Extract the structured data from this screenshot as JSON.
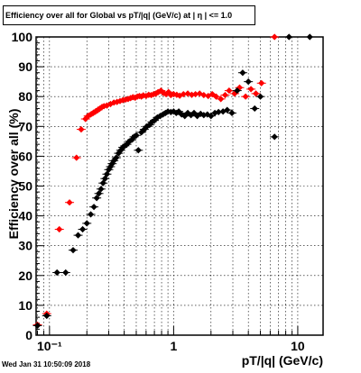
{
  "chart_data": {
    "type": "scatter",
    "title": "Efficiency over all for Global vs pT/|q| (GeV/c) at |  η | <= 1.0",
    "xlabel": "pT/|q| (GeV/c)",
    "ylabel": "Efficiency over all (%)",
    "x_scale": "log",
    "xlim": [
      0.078,
      16
    ],
    "ylim": [
      0,
      100
    ],
    "grid": true,
    "x_tick_labels": [
      {
        "value": 0.1,
        "label": "10⁻¹"
      },
      {
        "value": 1,
        "label": "1"
      },
      {
        "value": 10,
        "label": "10"
      }
    ],
    "y_tick_labels": [
      0,
      10,
      20,
      30,
      40,
      50,
      60,
      70,
      80,
      90,
      100
    ],
    "series": [
      {
        "color": "#ff0000",
        "points": [
          [
            0.08,
            3.5
          ],
          [
            0.095,
            7.2
          ],
          [
            0.12,
            35.5
          ],
          [
            0.145,
            44.5
          ],
          [
            0.165,
            59.5
          ],
          [
            0.18,
            69
          ],
          [
            0.195,
            72.5
          ],
          [
            0.205,
            73.5
          ],
          [
            0.215,
            74
          ],
          [
            0.225,
            74.5
          ],
          [
            0.235,
            75
          ],
          [
            0.245,
            75.5
          ],
          [
            0.255,
            76
          ],
          [
            0.265,
            76.5
          ],
          [
            0.275,
            76.8
          ],
          [
            0.29,
            77
          ],
          [
            0.31,
            77.5
          ],
          [
            0.33,
            78
          ],
          [
            0.35,
            78.2
          ],
          [
            0.37,
            78.5
          ],
          [
            0.39,
            78.8
          ],
          [
            0.41,
            79
          ],
          [
            0.43,
            79.2
          ],
          [
            0.45,
            79.5
          ],
          [
            0.47,
            79.8
          ],
          [
            0.49,
            79.6
          ],
          [
            0.51,
            80
          ],
          [
            0.53,
            80.2
          ],
          [
            0.55,
            80
          ],
          [
            0.57,
            80.4
          ],
          [
            0.6,
            80.2
          ],
          [
            0.63,
            80.6
          ],
          [
            0.66,
            80.5
          ],
          [
            0.69,
            80.8
          ],
          [
            0.72,
            81
          ],
          [
            0.75,
            81.5
          ],
          [
            0.79,
            82
          ],
          [
            0.83,
            81.2
          ],
          [
            0.87,
            80.8
          ],
          [
            0.91,
            81.5
          ],
          [
            0.95,
            80.5
          ],
          [
            1.0,
            80.8
          ],
          [
            1.06,
            80.6
          ],
          [
            1.12,
            80.3
          ],
          [
            1.2,
            80.8
          ],
          [
            1.3,
            81
          ],
          [
            1.4,
            80.6
          ],
          [
            1.5,
            80.8
          ],
          [
            1.62,
            81
          ],
          [
            1.75,
            80.5
          ],
          [
            1.9,
            80.2
          ],
          [
            2.05,
            80.8
          ],
          [
            2.2,
            80
          ],
          [
            2.4,
            79.2
          ],
          [
            2.6,
            80.5
          ],
          [
            2.8,
            82
          ],
          [
            3.1,
            81
          ],
          [
            3.4,
            83
          ],
          [
            3.8,
            80
          ],
          [
            4.2,
            82.5
          ],
          [
            4.6,
            81
          ],
          [
            5.1,
            84.5
          ],
          [
            6.5,
            100
          ]
        ]
      },
      {
        "color": "#000000",
        "points": [
          [
            0.08,
            3.2
          ],
          [
            0.095,
            6.5
          ],
          [
            0.115,
            21
          ],
          [
            0.135,
            21
          ],
          [
            0.155,
            28.5
          ],
          [
            0.17,
            33.5
          ],
          [
            0.185,
            35.5
          ],
          [
            0.2,
            37.5
          ],
          [
            0.215,
            40.5
          ],
          [
            0.228,
            43
          ],
          [
            0.24,
            46
          ],
          [
            0.25,
            47.5
          ],
          [
            0.26,
            49
          ],
          [
            0.27,
            51
          ],
          [
            0.28,
            52.5
          ],
          [
            0.29,
            54
          ],
          [
            0.3,
            55.5
          ],
          [
            0.31,
            56.5
          ],
          [
            0.32,
            57.5
          ],
          [
            0.33,
            58.5
          ],
          [
            0.345,
            59.5
          ],
          [
            0.36,
            61
          ],
          [
            0.375,
            62
          ],
          [
            0.39,
            63
          ],
          [
            0.405,
            63.5
          ],
          [
            0.42,
            64
          ],
          [
            0.44,
            65
          ],
          [
            0.46,
            65.5
          ],
          [
            0.48,
            66.5
          ],
          [
            0.5,
            67
          ],
          [
            0.52,
            62
          ],
          [
            0.55,
            68
          ],
          [
            0.58,
            69
          ],
          [
            0.61,
            70
          ],
          [
            0.64,
            70.5
          ],
          [
            0.67,
            71.5
          ],
          [
            0.7,
            72
          ],
          [
            0.74,
            73
          ],
          [
            0.78,
            73.5
          ],
          [
            0.82,
            74
          ],
          [
            0.86,
            74.5
          ],
          [
            0.9,
            75
          ],
          [
            0.95,
            74.8
          ],
          [
            1.0,
            75
          ],
          [
            1.05,
            74.5
          ],
          [
            1.1,
            75
          ],
          [
            1.16,
            74
          ],
          [
            1.23,
            73.5
          ],
          [
            1.3,
            74.5
          ],
          [
            1.38,
            73.8
          ],
          [
            1.46,
            74.5
          ],
          [
            1.55,
            73.5
          ],
          [
            1.65,
            74.2
          ],
          [
            1.75,
            73.8
          ],
          [
            1.87,
            74
          ],
          [
            2.0,
            73.5
          ],
          [
            2.15,
            74.5
          ],
          [
            2.3,
            74.8
          ],
          [
            2.5,
            75
          ],
          [
            2.7,
            75.5
          ],
          [
            2.95,
            74.5
          ],
          [
            3.25,
            82
          ],
          [
            3.6,
            88
          ],
          [
            4.0,
            85
          ],
          [
            4.5,
            76
          ],
          [
            5.0,
            80
          ],
          [
            6.5,
            66.5
          ],
          [
            8.5,
            100
          ],
          [
            12.5,
            100
          ]
        ]
      }
    ]
  },
  "footer": {
    "timestamp": "Wed Jan 31 10:50:09 2018"
  }
}
